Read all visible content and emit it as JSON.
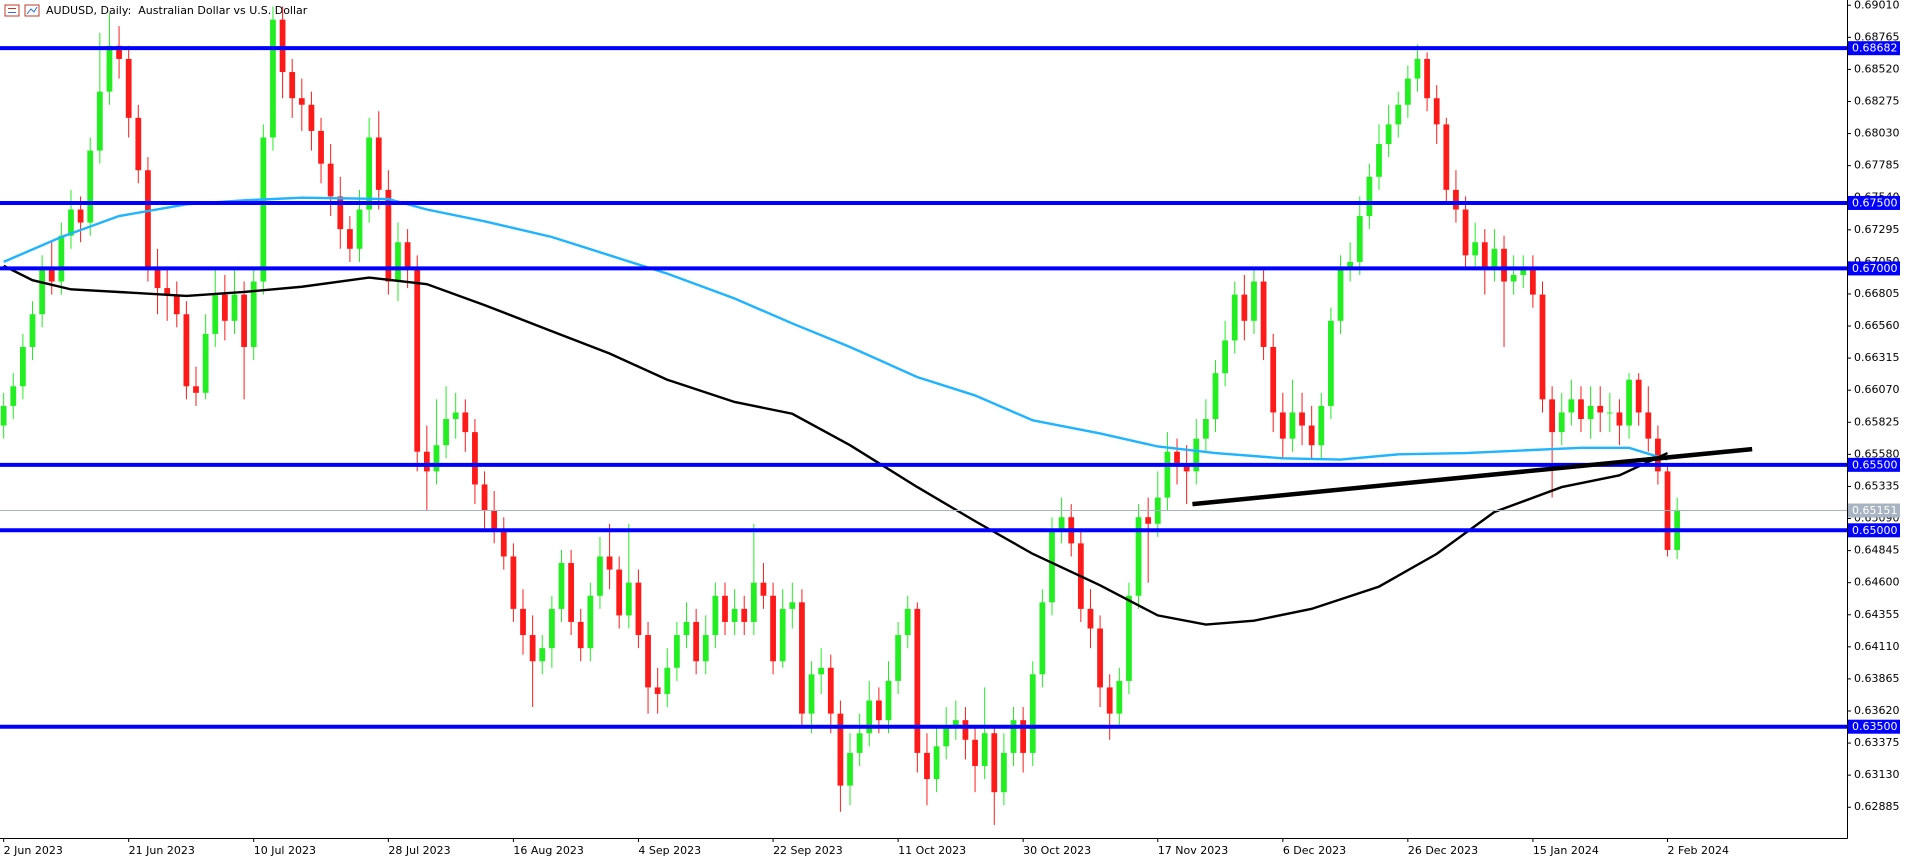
{
  "chart_data": {
    "type": "candlestick",
    "title": "AUDUSD, Daily:  Australian Dollar vs U.S. Dollar",
    "up_color": "#22ee22",
    "down_color": "#ff1a1a",
    "categories": [
      "2 Jun 2023",
      null,
      null,
      null,
      null,
      null,
      null,
      null,
      null,
      null,
      null,
      null,
      null,
      "21 Jun 2023",
      null,
      null,
      null,
      null,
      null,
      null,
      null,
      null,
      null,
      null,
      null,
      null,
      "10 Jul 2023",
      null,
      null,
      null,
      null,
      null,
      null,
      null,
      null,
      null,
      null,
      null,
      null,
      null,
      "28 Jul 2023",
      null,
      null,
      null,
      null,
      null,
      null,
      null,
      null,
      null,
      null,
      null,
      null,
      "16 Aug 2023",
      null,
      null,
      null,
      null,
      null,
      null,
      null,
      null,
      null,
      null,
      null,
      null,
      "4 Sep 2023",
      null,
      null,
      null,
      null,
      null,
      null,
      null,
      null,
      null,
      null,
      null,
      null,
      null,
      "22 Sep 2023",
      null,
      null,
      null,
      null,
      null,
      null,
      null,
      null,
      null,
      null,
      null,
      null,
      "11 Oct 2023",
      null,
      null,
      null,
      null,
      null,
      null,
      null,
      null,
      null,
      null,
      null,
      null,
      "30 Oct 2023",
      null,
      null,
      null,
      null,
      null,
      null,
      null,
      null,
      null,
      null,
      null,
      null,
      null,
      "17 Nov 2023",
      null,
      null,
      null,
      null,
      null,
      null,
      null,
      null,
      null,
      null,
      null,
      null,
      "6 Dec 2023",
      null,
      null,
      null,
      null,
      null,
      null,
      null,
      null,
      null,
      null,
      null,
      null,
      "26 Dec 2023",
      null,
      null,
      null,
      null,
      null,
      null,
      null,
      null,
      null,
      null,
      null,
      null,
      "15 Jan 2024",
      null,
      null,
      null,
      null,
      null,
      null,
      null,
      null,
      null,
      null,
      null,
      null,
      null,
      "2 Feb 2024",
      null
    ],
    "open": [
      0.658,
      0.6595,
      0.661,
      0.664,
      0.6665,
      0.67,
      0.669,
      0.6725,
      0.6745,
      0.6735,
      0.679,
      0.6835,
      0.687,
      0.686,
      0.6815,
      0.6775,
      0.67,
      0.6685,
      0.668,
      0.6665,
      0.661,
      0.6605,
      0.665,
      0.668,
      0.666,
      0.668,
      0.664,
      0.669,
      0.68,
      0.689,
      0.685,
      0.683,
      0.6825,
      0.6805,
      0.678,
      0.6755,
      0.673,
      0.6715,
      0.6745,
      0.68,
      0.676,
      0.669,
      0.672,
      0.67,
      0.656,
      0.6545,
      0.6565,
      0.6585,
      0.659,
      0.6575,
      0.6535,
      0.6515,
      0.65,
      0.648,
      0.644,
      0.642,
      0.64,
      0.641,
      0.644,
      0.6475,
      0.643,
      0.641,
      0.645,
      0.648,
      0.647,
      0.6435,
      0.646,
      0.642,
      0.638,
      0.6375,
      0.6395,
      0.642,
      0.643,
      0.64,
      0.642,
      0.645,
      0.643,
      0.644,
      0.643,
      0.646,
      0.645,
      0.64,
      0.644,
      0.6445,
      0.636,
      0.639,
      0.6395,
      0.636,
      0.6305,
      0.633,
      0.6345,
      0.637,
      0.6355,
      0.6385,
      0.642,
      0.644,
      0.633,
      0.631,
      0.6335,
      0.635,
      0.6355,
      0.634,
      0.632,
      0.6345,
      0.63,
      0.633,
      0.6355,
      0.633,
      0.639,
      0.6445,
      0.65,
      0.651,
      0.649,
      0.644,
      0.6425,
      0.638,
      0.636,
      0.6385,
      0.645,
      0.651,
      0.6505,
      0.6525,
      0.656,
      0.655,
      0.6545,
      0.657,
      0.6585,
      0.662,
      0.6645,
      0.668,
      0.666,
      0.669,
      0.664,
      0.659,
      0.657,
      0.659,
      0.658,
      0.6565,
      0.6595,
      0.666,
      0.67,
      0.6705,
      0.674,
      0.677,
      0.6795,
      0.681,
      0.6825,
      0.6845,
      0.686,
      0.683,
      0.681,
      0.676,
      0.6745,
      0.671,
      0.672,
      0.67,
      0.6715,
      0.669,
      0.6695,
      0.67,
      0.668,
      0.66,
      0.6575,
      0.659,
      0.66,
      0.6585,
      0.6595,
      0.659,
      0.659,
      0.658,
      0.6615,
      0.659,
      0.657,
      0.6545,
      0.6485
    ],
    "high": [
      0.6605,
      0.662,
      0.665,
      0.6675,
      0.671,
      0.672,
      0.6735,
      0.676,
      0.6755,
      0.68,
      0.688,
      0.6895,
      0.6885,
      0.687,
      0.6825,
      0.6785,
      0.6715,
      0.67,
      0.669,
      0.6675,
      0.6625,
      0.6665,
      0.67,
      0.6695,
      0.67,
      0.669,
      0.67,
      0.681,
      0.69,
      0.69,
      0.686,
      0.6845,
      0.6835,
      0.6815,
      0.6795,
      0.677,
      0.674,
      0.676,
      0.6815,
      0.682,
      0.6775,
      0.6735,
      0.673,
      0.671,
      0.658,
      0.66,
      0.661,
      0.6605,
      0.66,
      0.6585,
      0.6545,
      0.653,
      0.651,
      0.649,
      0.6455,
      0.6435,
      0.642,
      0.645,
      0.6485,
      0.6485,
      0.644,
      0.646,
      0.6495,
      0.6505,
      0.648,
      0.6505,
      0.647,
      0.643,
      0.6395,
      0.641,
      0.643,
      0.6445,
      0.644,
      0.6435,
      0.646,
      0.646,
      0.6455,
      0.645,
      0.6505,
      0.6475,
      0.646,
      0.6455,
      0.646,
      0.6455,
      0.64,
      0.641,
      0.6405,
      0.637,
      0.6345,
      0.636,
      0.6385,
      0.638,
      0.64,
      0.643,
      0.645,
      0.6445,
      0.6345,
      0.635,
      0.6365,
      0.637,
      0.6365,
      0.635,
      0.638,
      0.635,
      0.6345,
      0.6365,
      0.6365,
      0.64,
      0.6455,
      0.651,
      0.6525,
      0.652,
      0.65,
      0.6455,
      0.6435,
      0.639,
      0.6395,
      0.646,
      0.652,
      0.6525,
      0.6545,
      0.6575,
      0.657,
      0.6565,
      0.6585,
      0.66,
      0.663,
      0.666,
      0.669,
      0.6695,
      0.67,
      0.67,
      0.665,
      0.6605,
      0.6615,
      0.6605,
      0.6595,
      0.6605,
      0.667,
      0.671,
      0.672,
      0.6755,
      0.678,
      0.681,
      0.6825,
      0.6835,
      0.6855,
      0.6871,
      0.6865,
      0.684,
      0.6815,
      0.6775,
      0.6755,
      0.6735,
      0.673,
      0.673,
      0.6725,
      0.671,
      0.671,
      0.671,
      0.669,
      0.661,
      0.6605,
      0.6615,
      0.661,
      0.661,
      0.661,
      0.6605,
      0.66,
      0.662,
      0.662,
      0.661,
      0.658,
      0.655,
      0.6525
    ],
    "low": [
      0.657,
      0.6585,
      0.66,
      0.663,
      0.6655,
      0.668,
      0.668,
      0.6715,
      0.672,
      0.6725,
      0.678,
      0.6825,
      0.6845,
      0.68,
      0.6765,
      0.669,
      0.6665,
      0.666,
      0.6655,
      0.66,
      0.6595,
      0.66,
      0.664,
      0.6645,
      0.665,
      0.66,
      0.663,
      0.668,
      0.679,
      0.683,
      0.6815,
      0.6805,
      0.679,
      0.6765,
      0.674,
      0.6715,
      0.6705,
      0.6705,
      0.6735,
      0.6745,
      0.668,
      0.6675,
      0.6685,
      0.6545,
      0.6515,
      0.6535,
      0.6555,
      0.657,
      0.656,
      0.652,
      0.65,
      0.649,
      0.647,
      0.643,
      0.6405,
      0.6365,
      0.639,
      0.6395,
      0.643,
      0.642,
      0.64,
      0.64,
      0.644,
      0.6455,
      0.6425,
      0.6425,
      0.641,
      0.636,
      0.636,
      0.6365,
      0.6385,
      0.641,
      0.639,
      0.639,
      0.641,
      0.642,
      0.642,
      0.642,
      0.642,
      0.644,
      0.639,
      0.6395,
      0.6425,
      0.635,
      0.6345,
      0.6375,
      0.6345,
      0.6285,
      0.629,
      0.632,
      0.6335,
      0.6345,
      0.6345,
      0.6375,
      0.641,
      0.6315,
      0.629,
      0.63,
      0.6325,
      0.634,
      0.6325,
      0.63,
      0.631,
      0.6275,
      0.629,
      0.632,
      0.6315,
      0.632,
      0.638,
      0.6435,
      0.649,
      0.648,
      0.643,
      0.641,
      0.6365,
      0.634,
      0.635,
      0.6375,
      0.644,
      0.646,
      0.6495,
      0.6515,
      0.6535,
      0.652,
      0.6535,
      0.656,
      0.6575,
      0.661,
      0.6635,
      0.6645,
      0.665,
      0.663,
      0.6575,
      0.6555,
      0.656,
      0.6565,
      0.6555,
      0.6555,
      0.6585,
      0.665,
      0.669,
      0.6695,
      0.673,
      0.676,
      0.6785,
      0.68,
      0.6815,
      0.6835,
      0.682,
      0.6795,
      0.675,
      0.6735,
      0.67,
      0.67,
      0.668,
      0.669,
      0.664,
      0.668,
      0.6685,
      0.667,
      0.659,
      0.6525,
      0.6565,
      0.658,
      0.6575,
      0.657,
      0.6575,
      0.6575,
      0.6565,
      0.657,
      0.658,
      0.656,
      0.6535,
      0.648,
      0.6478
    ],
    "close": [
      0.6595,
      0.661,
      0.664,
      0.6665,
      0.67,
      0.669,
      0.6725,
      0.6745,
      0.6735,
      0.679,
      0.6835,
      0.687,
      0.686,
      0.6815,
      0.6775,
      0.67,
      0.6685,
      0.668,
      0.6665,
      0.661,
      0.6605,
      0.665,
      0.668,
      0.666,
      0.668,
      0.664,
      0.669,
      0.68,
      0.689,
      0.685,
      0.683,
      0.6825,
      0.6805,
      0.678,
      0.6755,
      0.673,
      0.6715,
      0.6745,
      0.68,
      0.676,
      0.669,
      0.672,
      0.67,
      0.656,
      0.6545,
      0.6565,
      0.6585,
      0.659,
      0.6575,
      0.6535,
      0.6515,
      0.65,
      0.648,
      0.644,
      0.642,
      0.64,
      0.641,
      0.644,
      0.6475,
      0.643,
      0.641,
      0.645,
      0.648,
      0.647,
      0.6435,
      0.646,
      0.642,
      0.638,
      0.6375,
      0.6395,
      0.642,
      0.643,
      0.64,
      0.642,
      0.645,
      0.643,
      0.644,
      0.643,
      0.646,
      0.645,
      0.64,
      0.644,
      0.6445,
      0.636,
      0.639,
      0.6395,
      0.636,
      0.6305,
      0.633,
      0.6345,
      0.637,
      0.6355,
      0.6385,
      0.642,
      0.644,
      0.633,
      0.631,
      0.6335,
      0.635,
      0.6355,
      0.634,
      0.632,
      0.6345,
      0.63,
      0.633,
      0.6355,
      0.633,
      0.639,
      0.6445,
      0.65,
      0.651,
      0.649,
      0.644,
      0.6425,
      0.638,
      0.636,
      0.6385,
      0.645,
      0.651,
      0.6505,
      0.6525,
      0.656,
      0.655,
      0.6545,
      0.657,
      0.6585,
      0.662,
      0.6645,
      0.668,
      0.666,
      0.669,
      0.664,
      0.659,
      0.657,
      0.659,
      0.658,
      0.6565,
      0.6595,
      0.666,
      0.67,
      0.6705,
      0.674,
      0.677,
      0.6795,
      0.681,
      0.6825,
      0.6845,
      0.686,
      0.683,
      0.681,
      0.676,
      0.6745,
      0.671,
      0.672,
      0.67,
      0.6715,
      0.669,
      0.6695,
      0.67,
      0.668,
      0.66,
      0.6575,
      0.659,
      0.66,
      0.6585,
      0.6595,
      0.659,
      0.659,
      0.658,
      0.6615,
      0.659,
      0.657,
      0.6545,
      0.6485,
      0.6515
    ],
    "moving_averages": [
      {
        "color": "#1eb4ff",
        "x": [
          0,
          6,
          12,
          19,
          25,
          31,
          40,
          44,
          50,
          57,
          63,
          69,
          76,
          82,
          88,
          95,
          101,
          107,
          114,
          120,
          126,
          133,
          139,
          145,
          152,
          158,
          164,
          169,
          173
        ],
        "values": [
          0.6705,
          0.6724,
          0.674,
          0.6749,
          0.6752,
          0.6754,
          0.6753,
          0.6745,
          0.6736,
          0.6724,
          0.671,
          0.6696,
          0.6677,
          0.6658,
          0.664,
          0.6617,
          0.6603,
          0.6584,
          0.6574,
          0.6564,
          0.6559,
          0.6555,
          0.6554,
          0.6558,
          0.6559,
          0.6561,
          0.6563,
          0.6563,
          0.6554
        ]
      },
      {
        "color": "#000000",
        "x": [
          0,
          3,
          7,
          12,
          19,
          25,
          31,
          38,
          44,
          50,
          57,
          63,
          69,
          76,
          82,
          88,
          95,
          101,
          107,
          114,
          120,
          125,
          130,
          136,
          143,
          149,
          155,
          162,
          168,
          173
        ],
        "values": [
          0.6702,
          0.6691,
          0.6684,
          0.6682,
          0.6679,
          0.6682,
          0.6686,
          0.6693,
          0.6688,
          0.6672,
          0.6652,
          0.6635,
          0.6615,
          0.6598,
          0.6589,
          0.6565,
          0.6533,
          0.6507,
          0.6482,
          0.6458,
          0.6435,
          0.6428,
          0.6431,
          0.644,
          0.6457,
          0.6482,
          0.6514,
          0.6533,
          0.6542,
          0.6559
        ]
      }
    ],
    "trendline": {
      "color": "#000000",
      "x": [
        123.6,
        181.8
      ],
      "values": [
        0.652,
        0.6562
      ]
    },
    "levels_color": "#0000ff",
    "levels": [
      {
        "value": 0.68682,
        "label": "0.68682"
      },
      {
        "value": 0.675,
        "label": "0.67500"
      },
      {
        "value": 0.67,
        "label": "0.67000"
      },
      {
        "value": 0.655,
        "label": "0.65500"
      },
      {
        "value": 0.65,
        "label": "0.65000"
      },
      {
        "value": 0.635,
        "label": "0.63500"
      }
    ],
    "last_price": {
      "value": 0.65151,
      "label": "0.65151",
      "color": "#a9b4c2"
    },
    "xlim": [
      -0.38,
      191.66
    ],
    "ylim": [
      0.6265,
      0.6905
    ],
    "yticks": [
      {
        "value": 0.6901,
        "label": "0.69010"
      },
      {
        "value": 0.68765,
        "label": "0.68765"
      },
      {
        "value": 0.6852,
        "label": "0.68520"
      },
      {
        "value": 0.68275,
        "label": "0.68275"
      },
      {
        "value": 0.6803,
        "label": "0.68030"
      },
      {
        "value": 0.67785,
        "label": "0.67785"
      },
      {
        "value": 0.6754,
        "label": "0.67540"
      },
      {
        "value": 0.67295,
        "label": "0.67295"
      },
      {
        "value": 0.6705,
        "label": "0.67050"
      },
      {
        "value": 0.66805,
        "label": "0.66805"
      },
      {
        "value": 0.6656,
        "label": "0.66560"
      },
      {
        "value": 0.66315,
        "label": "0.66315"
      },
      {
        "value": 0.6607,
        "label": "0.66070"
      },
      {
        "value": 0.65825,
        "label": "0.65825"
      },
      {
        "value": 0.6558,
        "label": "0.65580"
      },
      {
        "value": 0.65335,
        "label": "0.65335"
      },
      {
        "value": 0.6509,
        "label": "0.65090"
      },
      {
        "value": 0.64845,
        "label": "0.64845"
      },
      {
        "value": 0.646,
        "label": "0.64600"
      },
      {
        "value": 0.64355,
        "label": "0.64355"
      },
      {
        "value": 0.6411,
        "label": "0.64110"
      },
      {
        "value": 0.63865,
        "label": "0.63865"
      },
      {
        "value": 0.6362,
        "label": "0.63620"
      },
      {
        "value": 0.63375,
        "label": "0.63375"
      },
      {
        "value": 0.6313,
        "label": "0.63130"
      },
      {
        "value": 0.62885,
        "label": "0.62885"
      }
    ]
  }
}
